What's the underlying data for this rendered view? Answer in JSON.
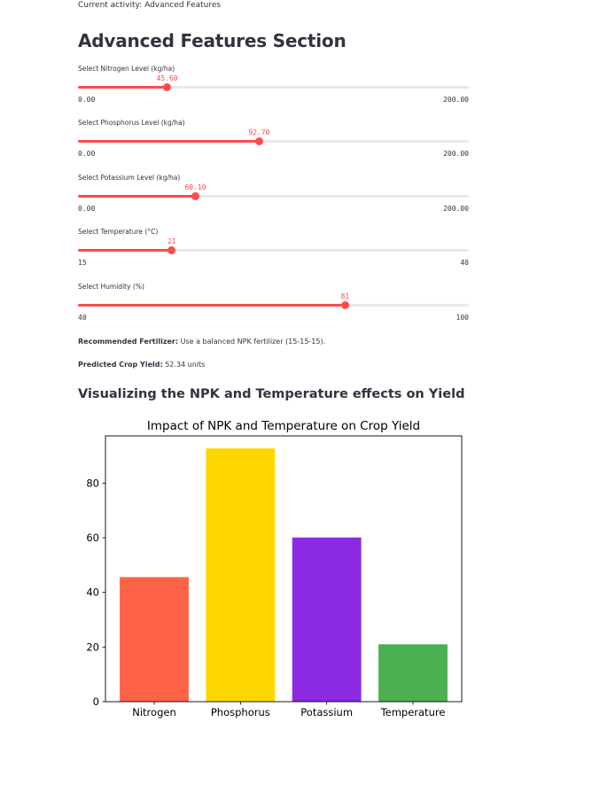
{
  "activity": "Current activity: Advanced Features",
  "section_title": "Advanced Features Section",
  "sliders": [
    {
      "label": "Select Nitrogen Level (kg/ha)",
      "value": 45.6,
      "value_text": "45.60",
      "min": 0,
      "max": 200,
      "min_text": "0.00",
      "max_text": "200.00"
    },
    {
      "label": "Select Phosphorus Level (kg/ha)",
      "value": 92.7,
      "value_text": "92.70",
      "min": 0,
      "max": 200,
      "min_text": "0.00",
      "max_text": "200.00"
    },
    {
      "label": "Select Potassium Level (kg/ha)",
      "value": 60.1,
      "value_text": "60.10",
      "min": 0,
      "max": 200,
      "min_text": "0.00",
      "max_text": "200.00"
    },
    {
      "label": "Select Temperature (°C)",
      "value": 21,
      "value_text": "21",
      "min": 15,
      "max": 40,
      "min_text": "15",
      "max_text": "40"
    },
    {
      "label": "Select Humidity (%)",
      "value": 81,
      "value_text": "81",
      "min": 40,
      "max": 100,
      "min_text": "40",
      "max_text": "100"
    }
  ],
  "recommendation": {
    "label": "Recommended Fertilizer:",
    "text": " Use a balanced NPK fertilizer (15-15-15)."
  },
  "prediction": {
    "label": "Predicted Crop Yield:",
    "text": " 52.34 units"
  },
  "chart_heading": "Visualizing the NPK and Temperature effects on Yield",
  "accent_color": "#ff4b4b",
  "chart_data": {
    "type": "bar",
    "title": "Impact of NPK and Temperature on Crop Yield",
    "categories": [
      "Nitrogen",
      "Phosphorus",
      "Potassium",
      "Temperature"
    ],
    "values": [
      45.6,
      92.7,
      60.1,
      21
    ],
    "colors": [
      "#ff6347",
      "#ffd700",
      "#8a2be2",
      "#4caf50"
    ],
    "ylim": [
      0,
      97.3
    ],
    "yticks": [
      "0",
      "20",
      "40",
      "60",
      "80"
    ],
    "xlabel": "",
    "ylabel": ""
  }
}
